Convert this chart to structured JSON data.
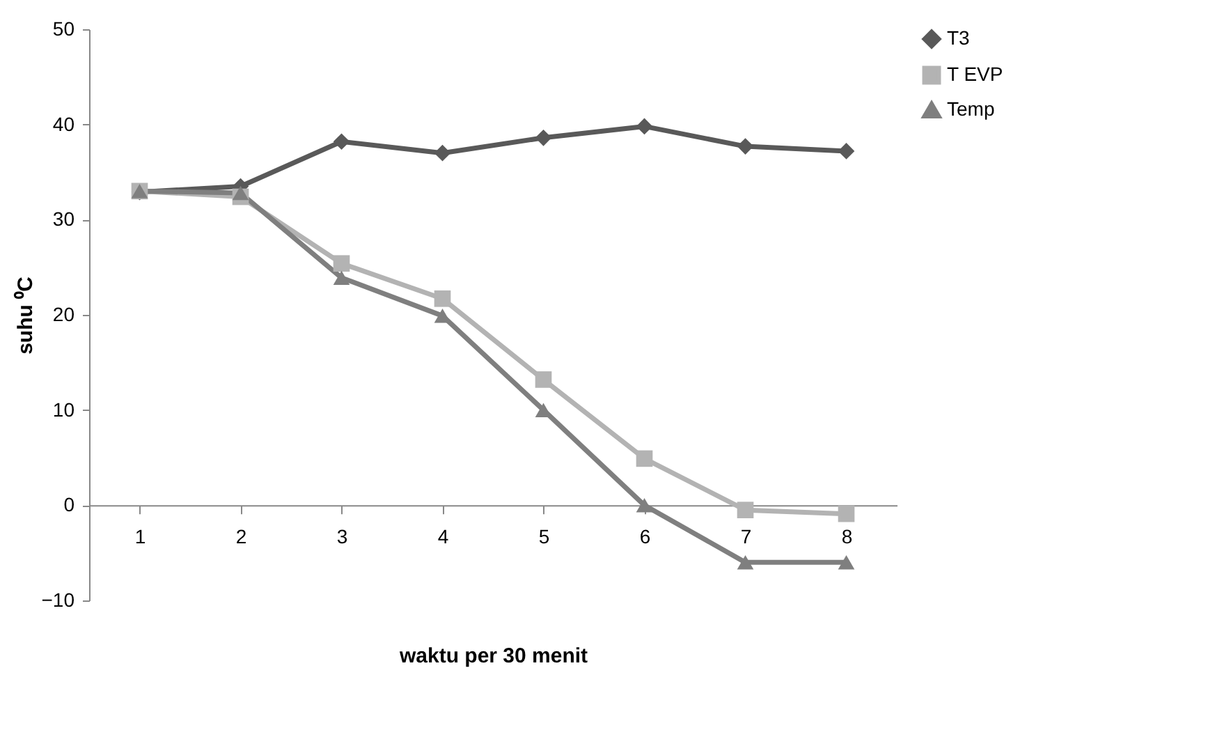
{
  "chart_data": {
    "type": "line",
    "xlabel": "waktu per 30 menit",
    "ylabel": "suhu ⁰C",
    "categories": [
      "1",
      "2",
      "3",
      "4",
      "5",
      "6",
      "7",
      "8"
    ],
    "series": [
      {
        "name": "T3",
        "color": "#595959",
        "marker": "diamond",
        "values": [
          32.9,
          33.5,
          38.2,
          37.0,
          38.6,
          39.8,
          37.7,
          37.2
        ]
      },
      {
        "name": "T EVP",
        "color": "#b3b3b3",
        "marker": "square",
        "values": [
          33.0,
          32.4,
          25.4,
          21.7,
          13.2,
          4.9,
          -0.5,
          -0.9
        ]
      },
      {
        "name": "Temp",
        "color": "#7f7f7f",
        "marker": "triangle",
        "values": [
          33.0,
          32.8,
          23.9,
          19.9,
          10.0,
          0.0,
          -6.0,
          -6.0
        ]
      }
    ],
    "ylim": [
      -10,
      50
    ],
    "yticks": [
      -10,
      0,
      10,
      20,
      30,
      40,
      50
    ],
    "grid": false,
    "legend": "right",
    "line_style": "solid"
  }
}
